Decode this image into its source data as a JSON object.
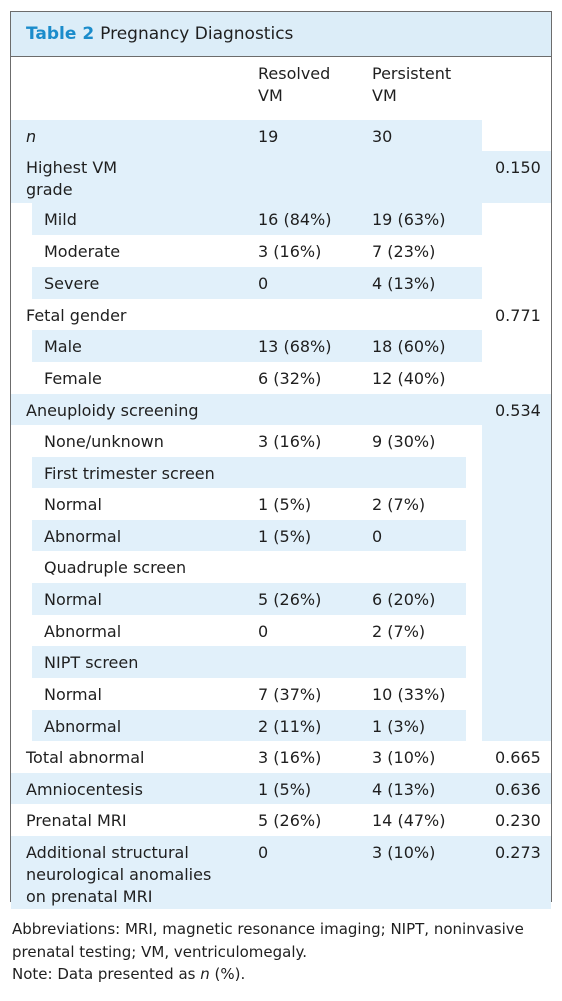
{
  "table": {
    "number": "Table 2",
    "title": "Pregnancy Diagnostics",
    "header": {
      "col1": "",
      "col2": "Resolved\nVM",
      "col3": "Persistent\nVM",
      "col4": ""
    },
    "rows": [
      {
        "label": "n",
        "italic": true,
        "indent": false,
        "resolved": "19",
        "persistent": "30",
        "p": "",
        "h": 31,
        "band": "lc"
      },
      {
        "label": "Highest VM\ngrade",
        "indent": false,
        "resolved": "",
        "persistent": "",
        "p": "0.150",
        "h": 52,
        "band": "lc"
      },
      {
        "label": "Mild",
        "indent": true,
        "resolved": "16 (84%)",
        "persistent": "19 (63%)",
        "p": "",
        "h": 32,
        "band": "tc"
      },
      {
        "label": "Moderate",
        "indent": true,
        "resolved": "3 (16%)",
        "persistent": "7 (23%)",
        "p": "",
        "h": 32,
        "band": "tw"
      },
      {
        "label": "Severe",
        "indent": true,
        "resolved": "0",
        "persistent": "4 (13%)",
        "p": "",
        "h": 32,
        "band": "tc"
      },
      {
        "label": "Fetal gender",
        "indent": false,
        "resolved": "",
        "persistent": "",
        "p": "0.771",
        "h": 31,
        "band": "lw"
      },
      {
        "label": "Male",
        "indent": true,
        "resolved": "13 (68%)",
        "persistent": "18 (60%)",
        "p": "",
        "h": 32,
        "band": "tc"
      },
      {
        "label": "Female",
        "indent": true,
        "resolved": "6 (32%)",
        "persistent": "12 (40%)",
        "p": "",
        "h": 32,
        "band": "tw"
      },
      {
        "label": "Aneuploidy screening",
        "indent": false,
        "resolved": "",
        "persistent": "",
        "p": "0.534",
        "h": 31,
        "band": "lc"
      },
      {
        "label": "None/unknown",
        "indent": true,
        "resolved": "3 (16%)",
        "persistent": "9 (30%)",
        "p": "",
        "h": 32,
        "band": "tw"
      },
      {
        "label": "First trimester screen",
        "indent": true,
        "resolved": "",
        "persistent": "",
        "p": "",
        "h": 31,
        "band": "tc"
      },
      {
        "label": "Normal",
        "indent": true,
        "resolved": "1 (5%)",
        "persistent": "2 (7%)",
        "p": "",
        "h": 32,
        "band": "tw"
      },
      {
        "label": "Abnormal",
        "indent": true,
        "resolved": "1 (5%)",
        "persistent": "0",
        "p": "",
        "h": 31,
        "band": "tc"
      },
      {
        "label": "Quadruple screen",
        "indent": true,
        "resolved": "",
        "persistent": "",
        "p": "",
        "h": 32,
        "band": "tw"
      },
      {
        "label": "Normal",
        "indent": true,
        "resolved": "5 (26%)",
        "persistent": "6 (20%)",
        "p": "",
        "h": 32,
        "band": "tc"
      },
      {
        "label": "Abnormal",
        "indent": true,
        "resolved": "0",
        "persistent": "2 (7%)",
        "p": "",
        "h": 31,
        "band": "tw"
      },
      {
        "label": "NIPT screen",
        "indent": true,
        "resolved": "",
        "persistent": "",
        "p": "",
        "h": 32,
        "band": "tc"
      },
      {
        "label": "Normal",
        "indent": true,
        "resolved": "7 (37%)",
        "persistent": "10 (33%)",
        "p": "",
        "h": 32,
        "band": "tw"
      },
      {
        "label": "Abnormal",
        "indent": true,
        "resolved": "2 (11%)",
        "persistent": "1 (3%)",
        "p": "",
        "h": 31,
        "band": "tc"
      },
      {
        "label": "Total abnormal",
        "indent": false,
        "resolved": "3 (16%)",
        "persistent": "3 (10%)",
        "p": "0.665",
        "h": 32,
        "band": "fw"
      },
      {
        "label": "Amniocentesis",
        "indent": false,
        "resolved": "1 (5%)",
        "persistent": "4 (13%)",
        "p": "0.636",
        "h": 31,
        "band": "fc"
      },
      {
        "label": "Prenatal MRI",
        "indent": false,
        "resolved": "5 (26%)",
        "persistent": "14 (47%)",
        "p": "0.230",
        "h": 32,
        "band": "fw"
      },
      {
        "label": "Additional structural\nneurological anomalies\non prenatal MRI",
        "indent": false,
        "resolved": "0",
        "persistent": "3 (10%)",
        "p": "0.273",
        "h": 73,
        "band": "fc"
      }
    ]
  },
  "footnotes": {
    "abbreviations": "Abbreviations: MRI, magnetic resonance imaging; NIPT, noninvasive prenatal testing; VM, ventriculomegaly.",
    "note_prefix": "Note: Data presented as ",
    "note_n": "n",
    "note_suffix": " (%)."
  },
  "colors": {
    "band": "#e1f0fa",
    "caption_bg": "#dcedf8",
    "accent": "#1b8ccb",
    "border": "#6c6c6c"
  }
}
